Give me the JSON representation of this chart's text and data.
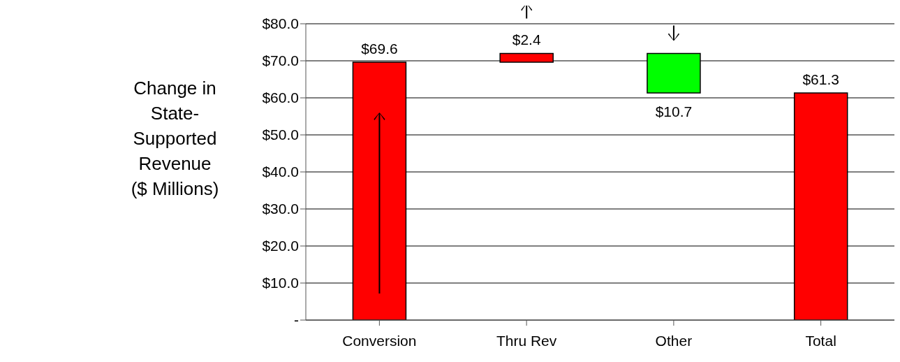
{
  "chart_data": {
    "type": "bar",
    "ylabel": "Change in State-Supported Revenue ($ Millions)",
    "categories": [
      "Conversion",
      "Thru Rev",
      "Other",
      "Total"
    ],
    "values": [
      69.6,
      2.4,
      -10.7,
      61.3
    ],
    "base": [
      0,
      69.6,
      72.0,
      0
    ],
    "colors": [
      "#ff0000",
      "#ff0000",
      "#00ff00",
      "#ff0000"
    ],
    "value_labels": [
      "$69.6",
      "$2.4",
      "$10.7",
      "$61.3"
    ],
    "ylim": [
      0,
      80
    ],
    "yticks": [
      {
        "value": 0,
        "label": "-"
      },
      {
        "value": 10,
        "label": "$10.0"
      },
      {
        "value": 20,
        "label": "$20.0"
      },
      {
        "value": 30,
        "label": "$30.0"
      },
      {
        "value": 40,
        "label": "$40.0"
      },
      {
        "value": 50,
        "label": "$50.0"
      },
      {
        "value": 60,
        "label": "$60.0"
      },
      {
        "value": 70,
        "label": "$70.0"
      },
      {
        "value": 80,
        "label": "$80.0"
      }
    ],
    "grid": "y"
  }
}
